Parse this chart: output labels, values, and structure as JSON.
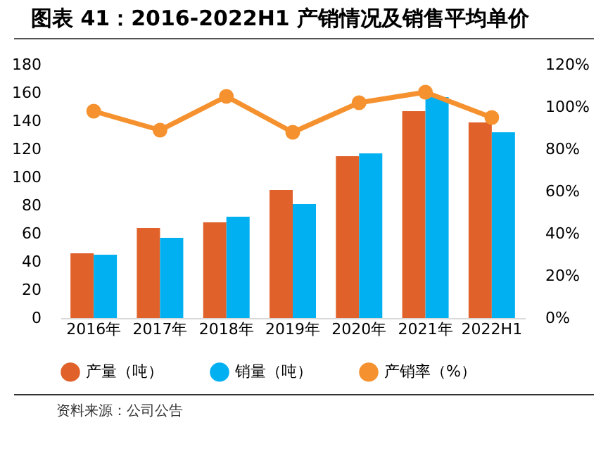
{
  "chart_data": {
    "type": "bar",
    "title": "图表 41：2016-2022H1 产销情况及销售平均单价",
    "categories": [
      "2016年",
      "2017年",
      "2018年",
      "2019年",
      "2020年",
      "2021年",
      "2022H1"
    ],
    "series": [
      {
        "name": "产量（吨）",
        "color": "#e0622a",
        "values": [
          46,
          64,
          68,
          91,
          115,
          147,
          139
        ]
      },
      {
        "name": "销量（吨）",
        "color": "#00b0f0",
        "values": [
          45,
          57,
          72,
          81,
          117,
          157,
          132
        ]
      },
      {
        "name": "产销率（%）",
        "type": "line",
        "axis": "y2",
        "color": "#f5922f",
        "marker": "circle",
        "line_style": "solid",
        "values": [
          98,
          89,
          105,
          88,
          102,
          107,
          95
        ]
      }
    ],
    "ylim": [
      0,
      180
    ],
    "yticks": [
      0,
      20,
      40,
      60,
      80,
      100,
      120,
      140,
      160,
      180
    ],
    "y2lim": [
      0,
      120
    ],
    "y2ticks": [
      {
        "value": 0,
        "label": "0%"
      },
      {
        "value": 20,
        "label": "20%"
      },
      {
        "value": 40,
        "label": "40%"
      },
      {
        "value": 60,
        "label": "60%"
      },
      {
        "value": 80,
        "label": "80%"
      },
      {
        "value": 100,
        "label": "100%"
      },
      {
        "value": 120,
        "label": "120%"
      }
    ],
    "grid": false,
    "legend": "bottom",
    "annotations": [
      "资料来源：公司公告"
    ]
  }
}
